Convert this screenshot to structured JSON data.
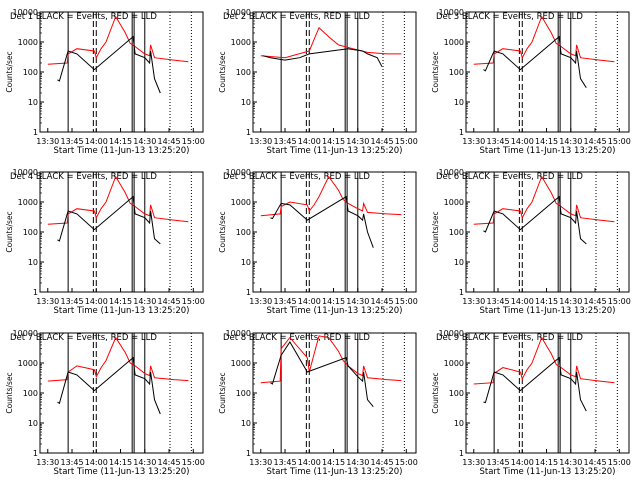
{
  "chart_data": [
    {
      "type": "line",
      "title": "Det 1 BLACK = Events, RED = LLD",
      "xlabel": "Start Time (11-Jun-13 13:25:20)",
      "ylabel": "Counts/sec",
      "x_ticks": [
        "13:30",
        "13:45",
        "14:00",
        "14:15",
        "14:30",
        "14:45",
        "15:00"
      ],
      "y_ticks": [
        "1",
        "10",
        "100",
        "1000",
        "10000"
      ],
      "ylim": [
        1,
        10000
      ],
      "y_scale": "log",
      "series": [
        {
          "name": "LLD",
          "color": "#ff0000",
          "x": [
            13.5,
            13.7,
            13.71,
            13.8,
            13.98,
            14.0,
            14.05,
            14.1,
            14.2,
            14.3,
            14.35,
            14.4,
            14.5,
            14.55,
            14.56,
            14.6,
            14.8,
            14.95
          ],
          "y": [
            180,
            200,
            400,
            600,
            500,
            300,
            600,
            1000,
            7000,
            2000,
            900,
            700,
            400,
            350,
            800,
            300,
            250,
            220
          ]
        },
        {
          "name": "Events",
          "color": "#000000",
          "x": [
            13.6,
            13.62,
            13.71,
            13.8,
            13.98,
            14.38,
            14.4,
            14.5,
            14.55,
            14.56,
            14.6,
            14.66
          ],
          "y": [
            55,
            50,
            500,
            400,
            120,
            1500,
            400,
            300,
            200,
            500,
            60,
            20
          ]
        }
      ]
    },
    {
      "type": "line",
      "title": "Det 2 BLACK = Events, RED = LLD",
      "xlabel": "Start Time (11-Jun-13 13:25:20)",
      "ylabel": "Counts/sec",
      "x_ticks": [
        "13:30",
        "13:45",
        "14:00",
        "14:15",
        "14:30",
        "14:45",
        "15:00"
      ],
      "y_ticks": [
        "1",
        "10",
        "100",
        "1000",
        "10000"
      ],
      "ylim": [
        1,
        10000
      ],
      "y_scale": "log",
      "series": [
        {
          "name": "LLD",
          "color": "#ff0000",
          "x": [
            13.5,
            13.75,
            14.0,
            14.1,
            14.2,
            14.3,
            14.45,
            14.6,
            14.8,
            14.95
          ],
          "y": [
            350,
            300,
            500,
            3000,
            1500,
            800,
            600,
            450,
            400,
            400
          ]
        },
        {
          "name": "Events",
          "color": "#000000",
          "x": [
            13.52,
            13.6,
            13.75,
            13.9,
            14.0,
            14.4,
            14.55,
            14.6,
            14.7,
            14.75
          ],
          "y": [
            350,
            300,
            250,
            300,
            400,
            600,
            500,
            400,
            300,
            150
          ]
        }
      ]
    },
    {
      "type": "line",
      "title": "Det 3 BLACK = Events, RED = LLD",
      "xlabel": "Start Time (11-Jun-13 13:25:20)",
      "ylabel": "Counts/sec",
      "x_ticks": [
        "13:30",
        "13:45",
        "14:00",
        "14:15",
        "14:30",
        "14:45",
        "15:00"
      ],
      "y_ticks": [
        "1",
        "10",
        "100",
        "1000",
        "10000"
      ],
      "ylim": [
        1,
        10000
      ],
      "y_scale": "log",
      "series": [
        {
          "name": "LLD",
          "color": "#ff0000",
          "x": [
            13.5,
            13.7,
            13.71,
            13.8,
            13.98,
            14.0,
            14.05,
            14.1,
            14.2,
            14.3,
            14.35,
            14.4,
            14.5,
            14.55,
            14.56,
            14.6,
            14.8,
            14.95
          ],
          "y": [
            180,
            200,
            400,
            600,
            500,
            300,
            600,
            1000,
            7000,
            2000,
            900,
            700,
            400,
            350,
            800,
            300,
            250,
            220
          ]
        },
        {
          "name": "Events",
          "color": "#000000",
          "x": [
            13.6,
            13.62,
            13.71,
            13.8,
            13.98,
            14.38,
            14.4,
            14.5,
            14.55,
            14.56,
            14.6,
            14.66
          ],
          "y": [
            120,
            110,
            500,
            400,
            120,
            1500,
            400,
            300,
            200,
            500,
            60,
            30
          ]
        }
      ]
    },
    {
      "type": "line",
      "title": "Det 4 BLACK = Events, RED = LLD",
      "xlabel": "Start Time (11-Jun-13 13:25:20)",
      "ylabel": "Counts/sec",
      "x_ticks": [
        "13:30",
        "13:45",
        "14:00",
        "14:15",
        "14:30",
        "14:45",
        "15:00"
      ],
      "y_ticks": [
        "1",
        "10",
        "100",
        "1000",
        "10000"
      ],
      "ylim": [
        1,
        10000
      ],
      "y_scale": "log",
      "series": [
        {
          "name": "LLD",
          "color": "#ff0000",
          "x": [
            13.5,
            13.7,
            13.71,
            13.8,
            13.98,
            14.0,
            14.05,
            14.1,
            14.2,
            14.3,
            14.35,
            14.4,
            14.5,
            14.55,
            14.56,
            14.6,
            14.8,
            14.95
          ],
          "y": [
            180,
            200,
            400,
            600,
            500,
            300,
            600,
            1000,
            7000,
            2000,
            900,
            700,
            400,
            350,
            800,
            300,
            250,
            220
          ]
        },
        {
          "name": "Events",
          "color": "#000000",
          "x": [
            13.6,
            13.62,
            13.71,
            13.8,
            13.98,
            14.38,
            14.4,
            14.5,
            14.55,
            14.56,
            14.6,
            14.66
          ],
          "y": [
            55,
            50,
            500,
            400,
            120,
            1500,
            400,
            300,
            200,
            500,
            60,
            40
          ]
        }
      ]
    },
    {
      "type": "line",
      "title": "Det 5 BLACK = Events, RED = LLD",
      "xlabel": "Start Time (11-Jun-13 13:25:20)",
      "ylabel": "Counts/sec",
      "x_ticks": [
        "13:30",
        "13:45",
        "14:00",
        "14:15",
        "14:30",
        "14:45",
        "15:00"
      ],
      "y_ticks": [
        "1",
        "10",
        "100",
        "1000",
        "10000"
      ],
      "ylim": [
        1,
        10000
      ],
      "y_scale": "log",
      "series": [
        {
          "name": "LLD",
          "color": "#ff0000",
          "x": [
            13.5,
            13.7,
            13.71,
            13.8,
            13.98,
            14.0,
            14.05,
            14.1,
            14.2,
            14.3,
            14.35,
            14.4,
            14.5,
            14.55,
            14.56,
            14.6,
            14.8,
            14.95
          ],
          "y": [
            350,
            400,
            700,
            1000,
            800,
            500,
            800,
            1500,
            7000,
            2500,
            1200,
            900,
            600,
            500,
            900,
            450,
            400,
            380
          ]
        },
        {
          "name": "Events",
          "color": "#000000",
          "x": [
            13.6,
            13.62,
            13.71,
            13.8,
            13.98,
            14.38,
            14.4,
            14.5,
            14.55,
            14.56,
            14.6,
            14.66
          ],
          "y": [
            300,
            280,
            900,
            800,
            250,
            1500,
            500,
            350,
            250,
            400,
            100,
            30
          ]
        }
      ]
    },
    {
      "type": "line",
      "title": "Det 6 BLACK = Events, RED = LLD",
      "xlabel": "Start Time (11-Jun-13 13:25:20)",
      "ylabel": "Counts/sec",
      "x_ticks": [
        "13:30",
        "13:45",
        "14:00",
        "14:15",
        "14:30",
        "14:45",
        "15:00"
      ],
      "y_ticks": [
        "1",
        "10",
        "100",
        "1000",
        "10000"
      ],
      "ylim": [
        1,
        10000
      ],
      "y_scale": "log",
      "series": [
        {
          "name": "LLD",
          "color": "#ff0000",
          "x": [
            13.5,
            13.7,
            13.71,
            13.8,
            13.98,
            14.0,
            14.05,
            14.1,
            14.2,
            14.3,
            14.35,
            14.4,
            14.5,
            14.55,
            14.56,
            14.6,
            14.8,
            14.95
          ],
          "y": [
            180,
            200,
            400,
            600,
            500,
            300,
            600,
            1000,
            7000,
            2000,
            900,
            700,
            400,
            350,
            800,
            300,
            250,
            220
          ]
        },
        {
          "name": "Events",
          "color": "#000000",
          "x": [
            13.6,
            13.62,
            13.71,
            13.8,
            13.98,
            14.38,
            14.4,
            14.5,
            14.55,
            14.56,
            14.6,
            14.66
          ],
          "y": [
            110,
            100,
            500,
            400,
            120,
            1500,
            400,
            300,
            200,
            500,
            60,
            40
          ]
        }
      ]
    },
    {
      "type": "line",
      "title": "Det 7 BLACK = Events, RED = LLD",
      "xlabel": "Start Time (11-Jun-13 13:25:20)",
      "ylabel": "Counts/sec",
      "x_ticks": [
        "13:30",
        "13:45",
        "14:00",
        "14:15",
        "14:30",
        "14:45",
        "15:00"
      ],
      "y_ticks": [
        "1",
        "10",
        "100",
        "1000",
        "10000"
      ],
      "ylim": [
        1,
        10000
      ],
      "y_scale": "log",
      "series": [
        {
          "name": "LLD",
          "color": "#ff0000",
          "x": [
            13.5,
            13.7,
            13.71,
            13.8,
            13.98,
            14.0,
            14.05,
            14.1,
            14.2,
            14.3,
            14.35,
            14.4,
            14.5,
            14.55,
            14.56,
            14.6,
            14.8,
            14.95
          ],
          "y": [
            250,
            280,
            500,
            800,
            600,
            350,
            700,
            1200,
            7000,
            2200,
            1000,
            800,
            450,
            380,
            800,
            320,
            280,
            260
          ]
        },
        {
          "name": "Events",
          "color": "#000000",
          "x": [
            13.6,
            13.62,
            13.71,
            13.8,
            13.98,
            14.38,
            14.4,
            14.5,
            14.55,
            14.56,
            14.6,
            14.66
          ],
          "y": [
            50,
            45,
            500,
            400,
            120,
            1500,
            400,
            300,
            200,
            500,
            60,
            20
          ]
        }
      ]
    },
    {
      "type": "line",
      "title": "Det 8 BLACK = Events, RED = LLD",
      "xlabel": "Start Time (11-Jun-13 13:25:20)",
      "ylabel": "Counts/sec",
      "x_ticks": [
        "13:30",
        "13:45",
        "14:00",
        "14:15",
        "14:30",
        "14:45",
        "15:00"
      ],
      "y_ticks": [
        "1",
        "10",
        "100",
        "1000",
        "10000"
      ],
      "ylim": [
        1,
        10000
      ],
      "y_scale": "log",
      "series": [
        {
          "name": "LLD",
          "color": "#ff0000",
          "x": [
            13.5,
            13.7,
            13.71,
            13.8,
            13.98,
            14.0,
            14.05,
            14.1,
            14.2,
            14.3,
            14.35,
            14.4,
            14.5,
            14.55,
            14.56,
            14.6,
            14.8,
            14.95
          ],
          "y": [
            220,
            250,
            3000,
            7000,
            1500,
            500,
            2000,
            8000,
            7000,
            2500,
            1200,
            800,
            450,
            380,
            800,
            320,
            280,
            260
          ]
        },
        {
          "name": "Events",
          "color": "#000000",
          "x": [
            13.6,
            13.62,
            13.71,
            13.8,
            13.98,
            14.38,
            14.4,
            14.5,
            14.55,
            14.56,
            14.6,
            14.66
          ],
          "y": [
            220,
            200,
            1800,
            5000,
            500,
            1500,
            800,
            350,
            250,
            500,
            60,
            35
          ]
        }
      ]
    },
    {
      "type": "line",
      "title": "Det 9 BLACK = Events, RED = LLD",
      "xlabel": "Start Time (11-Jun-13 13:25:20)",
      "ylabel": "Counts/sec",
      "x_ticks": [
        "13:30",
        "13:45",
        "14:00",
        "14:15",
        "14:30",
        "14:45",
        "15:00"
      ],
      "y_ticks": [
        "1",
        "10",
        "100",
        "1000",
        "10000"
      ],
      "ylim": [
        1,
        10000
      ],
      "y_scale": "log",
      "series": [
        {
          "name": "LLD",
          "color": "#ff0000",
          "x": [
            13.5,
            13.7,
            13.71,
            13.8,
            13.98,
            14.0,
            14.05,
            14.1,
            14.2,
            14.3,
            14.35,
            14.4,
            14.5,
            14.55,
            14.56,
            14.6,
            14.8,
            14.95
          ],
          "y": [
            200,
            220,
            450,
            700,
            500,
            300,
            600,
            1000,
            7000,
            2000,
            900,
            700,
            400,
            350,
            800,
            300,
            250,
            220
          ]
        },
        {
          "name": "Events",
          "color": "#000000",
          "x": [
            13.6,
            13.62,
            13.71,
            13.8,
            13.98,
            14.38,
            14.4,
            14.5,
            14.55,
            14.56,
            14.6,
            14.66
          ],
          "y": [
            50,
            48,
            500,
            400,
            120,
            1500,
            400,
            300,
            200,
            500,
            60,
            25
          ]
        }
      ]
    }
  ],
  "colors": {
    "lld": "#ff0000",
    "events": "#000000",
    "axes": "#000000",
    "background": "#ffffff"
  }
}
